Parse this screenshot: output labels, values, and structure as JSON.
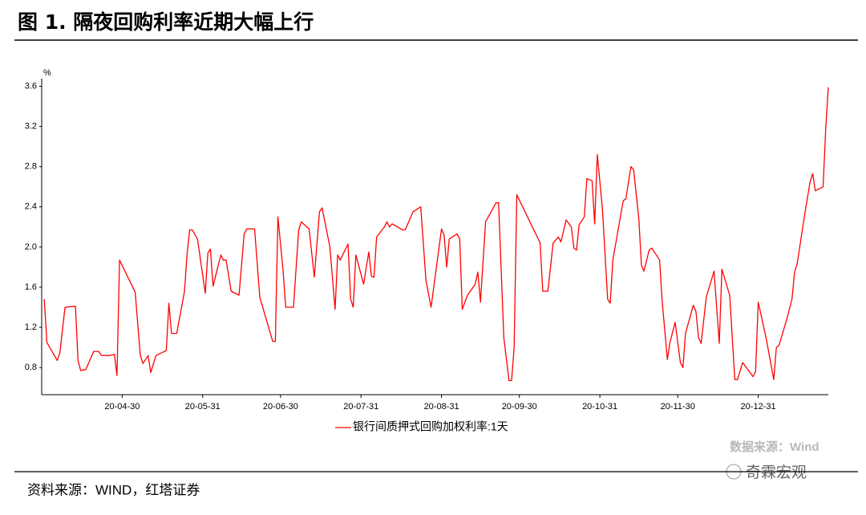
{
  "header": {
    "title": "图 1. 隔夜回购利率近期大幅上行"
  },
  "chart_data": {
    "type": "line",
    "y_label": "%",
    "x": [
      "20-03-31",
      "20-04-01",
      "20-04-05",
      "20-04-06",
      "20-04-08",
      "20-04-12",
      "20-04-13",
      "20-04-14",
      "20-04-16",
      "20-04-19",
      "20-04-21",
      "20-04-22",
      "20-04-25",
      "20-04-27",
      "20-04-28",
      "20-04-29",
      "20-05-05",
      "20-05-07",
      "20-05-08",
      "20-05-10",
      "20-05-11",
      "20-05-13",
      "20-05-17",
      "20-05-18",
      "20-05-19",
      "20-05-21",
      "20-05-24",
      "20-05-25",
      "20-05-26",
      "20-05-27",
      "20-05-29",
      "20-06-01",
      "20-06-02",
      "20-06-03",
      "20-06-04",
      "20-06-07",
      "20-06-08",
      "20-06-09",
      "20-06-11",
      "20-06-14",
      "20-06-16",
      "20-06-17",
      "20-06-20",
      "20-06-22",
      "20-06-27",
      "20-06-28",
      "20-06-29",
      "20-07-01",
      "20-07-02",
      "20-07-05",
      "20-07-07",
      "20-07-08",
      "20-07-11",
      "20-07-13",
      "20-07-15",
      "20-07-16",
      "20-07-19",
      "20-07-21",
      "20-07-22",
      "20-07-23",
      "20-07-26",
      "20-07-27",
      "20-07-28",
      "20-07-29",
      "20-08-01",
      "20-08-03",
      "20-08-04",
      "20-08-05",
      "20-08-06",
      "20-08-09",
      "20-08-10",
      "20-08-11",
      "20-08-12",
      "20-08-16",
      "20-08-17",
      "20-08-20",
      "20-08-23",
      "20-08-25",
      "20-08-27",
      "20-08-31",
      "20-09-01",
      "20-09-02",
      "20-09-03",
      "20-09-06",
      "20-09-07",
      "20-09-08",
      "20-09-10",
      "20-09-13",
      "20-09-14",
      "20-09-15",
      "20-09-17",
      "20-09-21",
      "20-09-22",
      "20-09-24",
      "20-09-26",
      "20-09-27",
      "20-09-28",
      "20-09-29",
      "20-10-08",
      "20-10-09",
      "20-10-11",
      "20-10-13",
      "20-10-15",
      "20-10-16",
      "20-10-18",
      "20-10-20",
      "20-10-21",
      "20-10-22",
      "20-10-23",
      "20-10-25",
      "20-10-26",
      "20-10-28",
      "20-10-29",
      "20-10-30",
      "20-11-01",
      "20-11-03",
      "20-11-04",
      "20-11-05",
      "20-11-09",
      "20-11-10",
      "20-11-12",
      "20-11-13",
      "20-11-15",
      "20-11-16",
      "20-11-17",
      "20-11-19",
      "20-11-20",
      "20-11-23",
      "20-11-24",
      "20-11-26",
      "20-11-27",
      "20-11-29",
      "20-12-01",
      "20-12-02",
      "20-12-03",
      "20-12-06",
      "20-12-07",
      "20-12-08",
      "20-12-09",
      "20-12-11",
      "20-12-14",
      "20-12-16",
      "20-12-17",
      "20-12-20",
      "20-12-22",
      "20-12-23",
      "20-12-25",
      "20-12-29",
      "20-12-30",
      "20-12-31",
      "21-01-03",
      "21-01-06",
      "21-01-07",
      "21-01-08",
      "21-01-11",
      "21-01-13",
      "21-01-14",
      "21-01-15",
      "21-01-18",
      "21-01-20",
      "21-01-21",
      "21-01-22",
      "21-01-25",
      "21-01-26",
      "21-01-27"
    ],
    "series": [
      {
        "name": "银行间质押式回购加权利率:1天",
        "color": "#ff0000",
        "values": [
          1.48,
          1.05,
          0.87,
          0.95,
          1.4,
          1.41,
          0.87,
          0.77,
          0.78,
          0.96,
          0.96,
          0.92,
          0.92,
          0.93,
          0.72,
          1.87,
          1.55,
          0.92,
          0.84,
          0.92,
          0.75,
          0.92,
          0.97,
          1.44,
          1.14,
          1.14,
          1.56,
          1.93,
          2.17,
          2.17,
          2.08,
          1.54,
          1.94,
          1.98,
          1.61,
          1.92,
          1.87,
          1.87,
          1.56,
          1.52,
          2.13,
          2.18,
          2.18,
          1.5,
          1.06,
          1.06,
          2.3,
          1.76,
          1.4,
          1.4,
          2.17,
          2.25,
          2.18,
          1.7,
          2.35,
          2.39,
          2.0,
          1.38,
          1.92,
          1.87,
          2.03,
          1.48,
          1.4,
          1.92,
          1.63,
          1.95,
          1.71,
          1.7,
          2.1,
          2.2,
          2.25,
          2.2,
          2.23,
          2.17,
          2.17,
          2.35,
          2.4,
          1.67,
          1.4,
          2.18,
          2.12,
          1.8,
          2.08,
          2.13,
          2.08,
          1.38,
          1.52,
          1.63,
          1.75,
          1.45,
          2.25,
          2.44,
          2.44,
          1.1,
          0.67,
          0.67,
          1.0,
          2.52,
          2.04,
          1.56,
          1.56,
          2.04,
          2.1,
          2.05,
          2.27,
          2.2,
          1.99,
          1.97,
          2.22,
          2.3,
          2.68,
          2.66,
          2.23,
          2.92,
          2.38,
          1.48,
          1.44,
          1.87,
          2.46,
          2.48,
          2.8,
          2.77,
          2.28,
          1.82,
          1.76,
          1.97,
          1.99,
          1.87,
          1.46,
          0.88,
          1.05,
          1.25,
          0.85,
          0.8,
          1.14,
          1.42,
          1.36,
          1.1,
          1.04,
          1.5,
          1.76,
          1.04,
          1.78,
          1.52,
          0.68,
          0.68,
          0.85,
          0.71,
          0.76,
          1.45,
          1.1,
          0.68,
          1.0,
          1.02,
          1.28,
          1.48,
          1.75,
          1.83,
          2.34,
          2.65,
          2.73,
          2.56,
          2.6,
          3.18,
          3.59
        ]
      }
    ],
    "xlim": [
      "20-03-30",
      "21-01-27"
    ],
    "xticks": [
      "20-04-30",
      "20-05-31",
      "20-06-30",
      "20-07-31",
      "20-08-31",
      "20-09-30",
      "20-10-31",
      "20-11-30",
      "20-12-31"
    ],
    "ylim": [
      0.53,
      3.74
    ],
    "yticks": [
      0.8,
      1.2,
      1.6,
      {
        "value": 2,
        "label": "2.0"
      },
      2.4,
      2.8,
      3.2,
      3.6
    ],
    "grid": false
  },
  "watermark": "数据来源：Wind",
  "logo": "奇霖宏观",
  "footer": {
    "source": "资料来源：WIND，红塔证券"
  }
}
